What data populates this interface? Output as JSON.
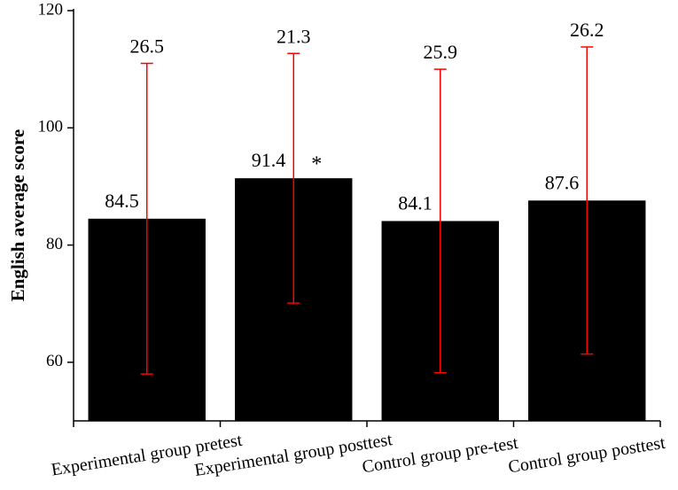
{
  "chart_data": {
    "type": "bar",
    "y_label": "English average score",
    "categories": [
      "Experimental group pretest",
      "Experimental group posttest",
      "Control group pre-test",
      "Control group posttest"
    ],
    "values": [
      84.5,
      91.4,
      84.1,
      87.6
    ],
    "errors": [
      26.5,
      21.3,
      25.9,
      26.2
    ],
    "color": "#000000",
    "error_color": "#ff0000",
    "annotation": "*",
    "ylim": [
      50,
      120
    ],
    "yticks": [
      60,
      80,
      100,
      120
    ]
  }
}
